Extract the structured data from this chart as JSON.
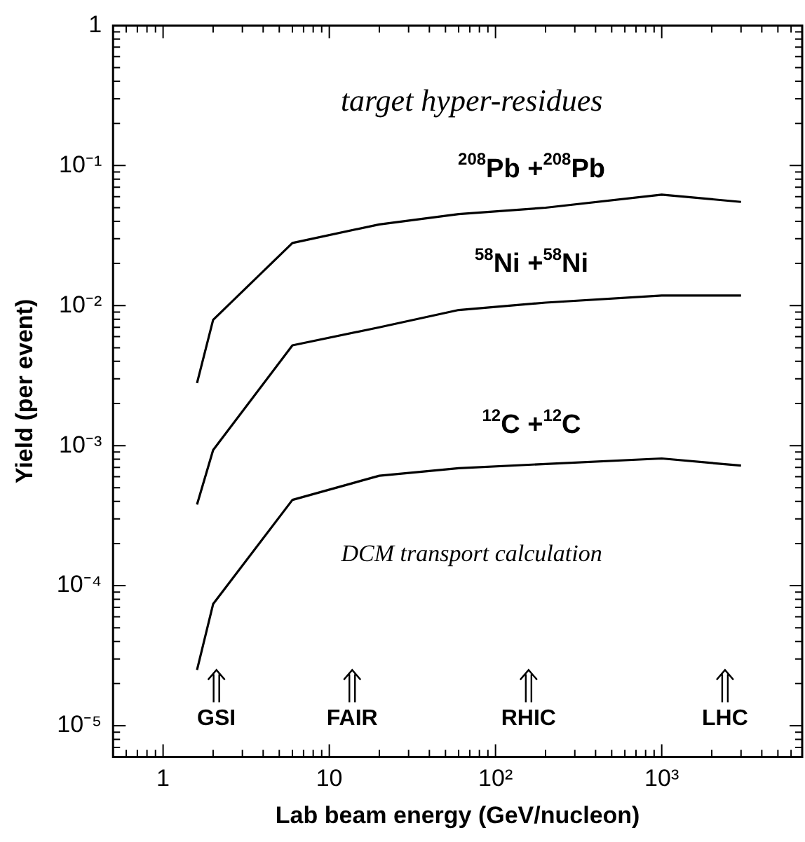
{
  "chart_data": {
    "type": "line",
    "xlabel": "Lab beam energy (GeV/nucleon)",
    "ylabel": "Yield (per event)",
    "x": [
      1.6,
      2,
      6,
      20,
      60,
      200,
      1000,
      3000
    ],
    "series": [
      {
        "name": "$^{208}$Pb +$^{208}$Pb",
        "color": "#000000",
        "values": [
          0.0028,
          0.0079,
          0.028,
          0.038,
          0.045,
          0.05,
          0.062,
          0.055
        ]
      },
      {
        "name": "$^{58}$Ni +$^{58}$Ni",
        "color": "#000000",
        "values": [
          0.00038,
          0.00093,
          0.0052,
          0.007,
          0.0093,
          0.0105,
          0.0118,
          0.0118
        ]
      },
      {
        "name": "$^{12}$C +$^{12}$C",
        "color": "#000000",
        "values": [
          2.5e-05,
          7.4e-05,
          0.00041,
          0.00061,
          0.00069,
          0.00074,
          0.00081,
          0.00072
        ]
      }
    ],
    "log": "xy",
    "xlim": [
      0.5,
      7000
    ],
    "ylim": [
      6e-06,
      1
    ],
    "xticks": [
      1,
      10,
      {
        "value": 100,
        "label": "10²"
      },
      {
        "value": 1000,
        "label": "10³"
      }
    ],
    "yticks": [
      {
        "value": 1e-05,
        "label": "10⁻⁵"
      },
      {
        "value": 0.0001,
        "label": "10⁻⁴"
      },
      {
        "value": 0.001,
        "label": "10⁻³"
      },
      {
        "value": 0.01,
        "label": "10⁻²"
      },
      {
        "value": 0.1,
        "label": "10⁻¹"
      },
      1
    ],
    "grid": false,
    "legend": false,
    "marker": "none",
    "line_style": "solid",
    "annotations": [
      "target hyper-residues",
      "DCM transport calculation",
      "GSI",
      "FAIR",
      "RHIC",
      "LHC"
    ]
  }
}
